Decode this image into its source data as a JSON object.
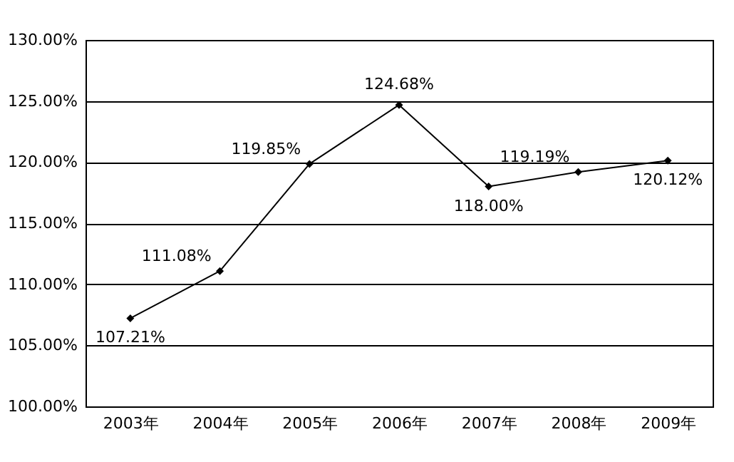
{
  "chart_data": {
    "type": "line",
    "categories": [
      "2003年",
      "2004年",
      "2005年",
      "2006年",
      "2007年",
      "2008年",
      "2009年"
    ],
    "series": [
      {
        "color": "#000000",
        "values": [
          107.21,
          111.08,
          119.85,
          124.68,
          118.0,
          119.19,
          120.12
        ],
        "value_labels": [
          "107.21%",
          "111.08%",
          "119.85%",
          "124.68%",
          "118.00%",
          "119.19%",
          "120.12%"
        ]
      }
    ],
    "ylim": [
      100,
      130
    ],
    "yticks": [
      {
        "value": 100,
        "label": "100.00%"
      },
      {
        "value": 105,
        "label": "105.00%"
      },
      {
        "value": 110,
        "label": "110.00%"
      },
      {
        "value": 115,
        "label": "115.00%"
      },
      {
        "value": 120,
        "label": "120.00%"
      },
      {
        "value": 125,
        "label": "125.00%"
      },
      {
        "value": 130,
        "label": "130.00%"
      }
    ],
    "grid": "y",
    "marker": "diamond",
    "line_style": "solid"
  }
}
